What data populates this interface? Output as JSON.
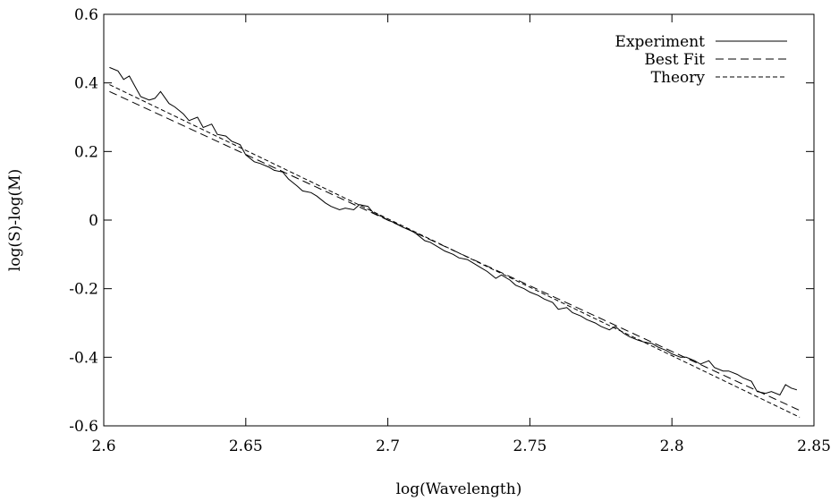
{
  "chart_data": {
    "type": "line",
    "xlabel": "log(Wavelength)",
    "ylabel": "log(S)-log(M)",
    "xlim": [
      2.6,
      2.85
    ],
    "ylim": [
      -0.6,
      0.6
    ],
    "x_ticks": [
      2.6,
      2.65,
      2.7,
      2.75,
      2.8,
      2.85
    ],
    "x_tick_labels": [
      "2.6",
      "2.65",
      "2.7",
      "2.75",
      "2.8",
      "2.85"
    ],
    "y_ticks": [
      0.6,
      0.4,
      0.2,
      0,
      -0.2,
      -0.4,
      -0.6
    ],
    "y_tick_labels": [
      "0.6",
      "0.4",
      "0.2",
      "0",
      "-0.2",
      "-0.4",
      "-0.6"
    ],
    "grid": false,
    "legend_position": "top-right",
    "series": [
      {
        "name": "Experiment",
        "style": "solid",
        "x": [
          2.602,
          2.605,
          2.607,
          2.609,
          2.611,
          2.613,
          2.616,
          2.618,
          2.62,
          2.623,
          2.625,
          2.628,
          2.63,
          2.633,
          2.635,
          2.638,
          2.64,
          2.643,
          2.645,
          2.648,
          2.65,
          2.653,
          2.655,
          2.658,
          2.66,
          2.663,
          2.665,
          2.668,
          2.67,
          2.673,
          2.675,
          2.678,
          2.68,
          2.683,
          2.685,
          2.688,
          2.69,
          2.693,
          2.695,
          2.698,
          2.7,
          2.703,
          2.705,
          2.708,
          2.71,
          2.713,
          2.715,
          2.718,
          2.72,
          2.723,
          2.725,
          2.728,
          2.73,
          2.733,
          2.735,
          2.738,
          2.74,
          2.743,
          2.745,
          2.748,
          2.75,
          2.753,
          2.755,
          2.758,
          2.76,
          2.763,
          2.765,
          2.768,
          2.77,
          2.773,
          2.775,
          2.778,
          2.78,
          2.783,
          2.785,
          2.788,
          2.79,
          2.793,
          2.795,
          2.798,
          2.8,
          2.803,
          2.805,
          2.808,
          2.81,
          2.813,
          2.815,
          2.818,
          2.82,
          2.823,
          2.825,
          2.828,
          2.83,
          2.833,
          2.835,
          2.838,
          2.84,
          2.842,
          2.844
        ],
        "y": [
          0.445,
          0.435,
          0.41,
          0.42,
          0.39,
          0.36,
          0.35,
          0.355,
          0.375,
          0.34,
          0.33,
          0.31,
          0.29,
          0.3,
          0.27,
          0.28,
          0.25,
          0.245,
          0.23,
          0.22,
          0.19,
          0.17,
          0.165,
          0.155,
          0.145,
          0.14,
          0.12,
          0.1,
          0.085,
          0.08,
          0.07,
          0.05,
          0.04,
          0.03,
          0.035,
          0.03,
          0.045,
          0.04,
          0.02,
          0.01,
          0.0,
          -0.01,
          -0.02,
          -0.03,
          -0.04,
          -0.06,
          -0.065,
          -0.08,
          -0.09,
          -0.1,
          -0.11,
          -0.115,
          -0.125,
          -0.14,
          -0.15,
          -0.17,
          -0.16,
          -0.175,
          -0.19,
          -0.2,
          -0.21,
          -0.22,
          -0.23,
          -0.24,
          -0.26,
          -0.255,
          -0.27,
          -0.28,
          -0.29,
          -0.3,
          -0.31,
          -0.32,
          -0.31,
          -0.33,
          -0.34,
          -0.35,
          -0.355,
          -0.36,
          -0.37,
          -0.38,
          -0.39,
          -0.4,
          -0.4,
          -0.41,
          -0.42,
          -0.41,
          -0.43,
          -0.44,
          -0.44,
          -0.45,
          -0.46,
          -0.47,
          -0.5,
          -0.505,
          -0.5,
          -0.51,
          -0.48,
          -0.49,
          -0.495
        ]
      },
      {
        "name": "Best Fit",
        "style": "long-dash",
        "x": [
          2.602,
          2.845
        ],
        "y": [
          0.375,
          -0.555
        ]
      },
      {
        "name": "Theory",
        "style": "short-dash",
        "x": [
          2.602,
          2.845
        ],
        "y": [
          0.395,
          -0.575
        ]
      }
    ]
  }
}
